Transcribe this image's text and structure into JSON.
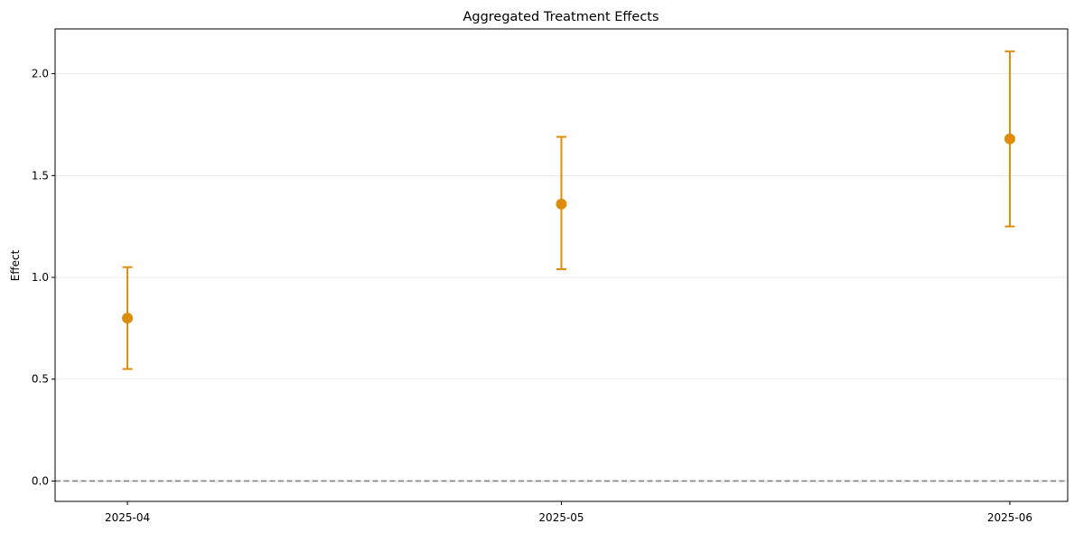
{
  "chart_data": {
    "type": "scatter",
    "title": "Aggregated Treatment Effects",
    "xlabel": "",
    "ylabel": "Effect",
    "categories": [
      "2025-04",
      "2025-05",
      "2025-06"
    ],
    "x": [
      "2025-04-01",
      "2025-05-01",
      "2025-06-01"
    ],
    "series": [
      {
        "values": [
          0.8,
          1.36,
          1.68
        ],
        "lower": [
          0.55,
          1.04,
          1.25
        ],
        "upper": [
          1.05,
          1.69,
          2.11
        ]
      }
    ],
    "ylim": [
      -0.1,
      2.22
    ],
    "yticks": [
      0.0,
      0.5,
      1.0,
      1.5,
      2.0
    ],
    "ytick_labels": [
      "0.0",
      "0.5",
      "1.0",
      "1.5",
      "2.0"
    ],
    "xlim": [
      "2025-03-27",
      "2025-06-05"
    ],
    "reference_line": {
      "y": 0.0,
      "style": "dashed",
      "color": "#808080"
    },
    "grid": {
      "y": true,
      "x": false
    },
    "legend": "none",
    "colors": {
      "series": "#e08c0b",
      "grid": "#e6e6e6",
      "axes": "#000000"
    }
  }
}
